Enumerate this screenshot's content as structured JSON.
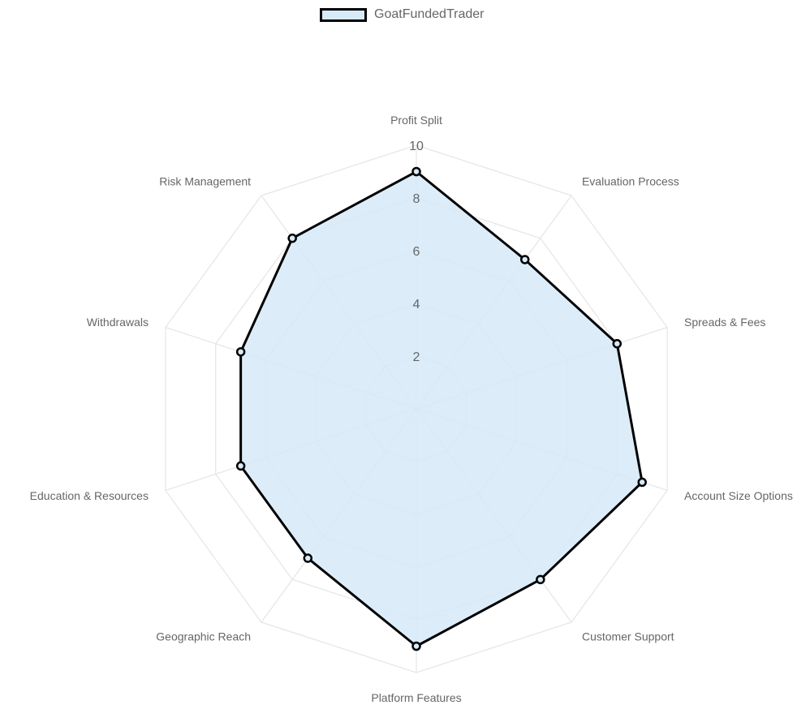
{
  "chart_data": {
    "type": "radar",
    "axes": [
      "Profit Split",
      "Evaluation Process",
      "Spreads & Fees",
      "Account Size Options",
      "Customer Support",
      "Platform Features",
      "Geographic Reach",
      "Education & Resources",
      "Withdrawals",
      "Risk Management"
    ],
    "series": [
      {
        "name": "GoatFundedTrader",
        "values": [
          9,
          7,
          8,
          9,
          8,
          9,
          7,
          7,
          7,
          8
        ]
      }
    ],
    "rlim": [
      0,
      10
    ],
    "ticks": [
      "2",
      "4",
      "6",
      "8",
      "10"
    ],
    "tick_values": [
      2,
      4,
      6,
      8,
      10
    ],
    "grid": true,
    "legend_position": "top",
    "colors": {
      "fill": "#d6eaf8",
      "line": "#000000",
      "grid": "#e5e5e5"
    }
  }
}
